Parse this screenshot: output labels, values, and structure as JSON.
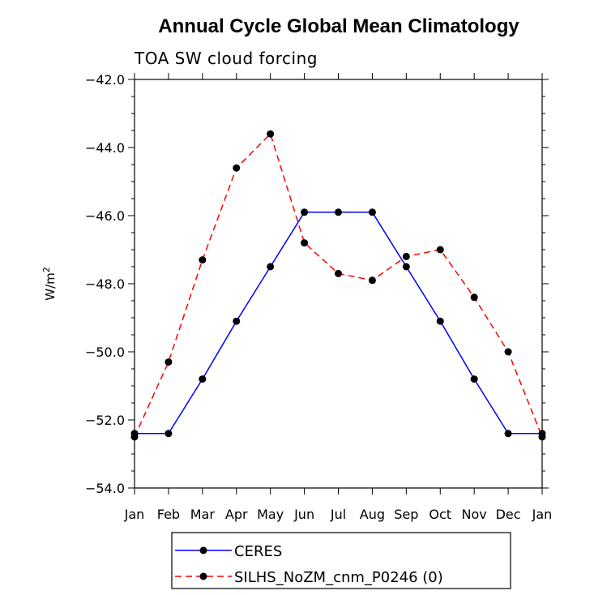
{
  "chart_data": {
    "type": "line",
    "title": "Annual Cycle Global Mean Climatology",
    "subtitle": "TOA SW cloud forcing",
    "xlabel": "",
    "ylabel": "W/m",
    "ylabel_superscript": "2",
    "categories": [
      "Jan",
      "Feb",
      "Mar",
      "Apr",
      "May",
      "Jun",
      "Jul",
      "Aug",
      "Sep",
      "Oct",
      "Nov",
      "Dec",
      "Jan"
    ],
    "ylim": [
      -54.0,
      -42.0
    ],
    "yticks": [
      -42.0,
      -44.0,
      -46.0,
      -48.0,
      -50.0,
      -52.0,
      -54.0
    ],
    "ytick_labels": [
      "−42.0",
      "−44.0",
      "−46.0",
      "−48.0",
      "−50.0",
      "−52.0",
      "−54.0"
    ],
    "grid": false,
    "legend_position": "bottom",
    "series": [
      {
        "name": "CERES",
        "color": "#0000ff",
        "dash": "solid",
        "values": [
          -52.4,
          -52.4,
          -50.8,
          -49.1,
          -47.5,
          -45.9,
          -45.9,
          -45.9,
          -47.5,
          -49.1,
          -50.8,
          -52.4,
          -52.4
        ]
      },
      {
        "name": "SILHS_NoZM_cnm_P0246 (0)",
        "color": "#ff0000",
        "dash": "dashed",
        "values": [
          -52.5,
          -50.3,
          -47.3,
          -44.6,
          -43.6,
          -46.8,
          -47.7,
          -47.9,
          -47.2,
          -47.0,
          -48.4,
          -50.0,
          -52.5
        ]
      }
    ]
  }
}
